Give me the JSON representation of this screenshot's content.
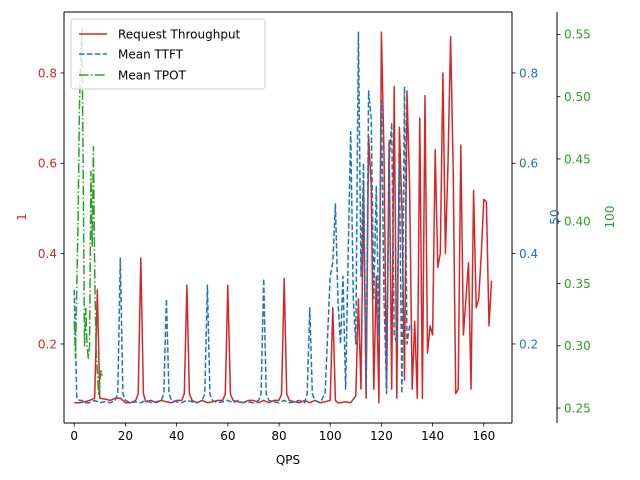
{
  "chart_data": {
    "type": "line",
    "xlabel": "QPS",
    "x_ticks": [
      "0",
      "20",
      "40",
      "60",
      "80",
      "100",
      "120",
      "140",
      "160"
    ],
    "xlim": [
      -4,
      171
    ],
    "axes": [
      {
        "id": "left",
        "label": "1",
        "color": "#d62728",
        "ylim": [
          0.025,
          0.935
        ],
        "ticks": [
          "0.2",
          "0.4",
          "0.6",
          "0.8"
        ]
      },
      {
        "id": "right1",
        "label": "50",
        "color": "#1f77b4",
        "ylim": [
          0.025,
          0.935
        ],
        "ticks": [
          "0.2",
          "0.4",
          "0.6",
          "0.8"
        ]
      },
      {
        "id": "right2",
        "label": "100",
        "color": "#2ca02c",
        "ylim": [
          0.238,
          0.568
        ],
        "ticks": [
          "0.25",
          "0.30",
          "0.35",
          "0.40",
          "0.45",
          "0.50",
          "0.55"
        ]
      }
    ],
    "legend": {
      "position": "upper-left",
      "entries": [
        "Request Throughput",
        "Mean TTFT",
        "Mean TPOT"
      ]
    },
    "series": [
      {
        "name": "Request Throughput",
        "axis": "left",
        "color": "#d62728",
        "style": "solid",
        "x": [
          0,
          2,
          4,
          6,
          8,
          9,
          10,
          12,
          14,
          16,
          18,
          20,
          22,
          24,
          25,
          26,
          27,
          28,
          30,
          32,
          34,
          36,
          38,
          40,
          42,
          43,
          44,
          45,
          46,
          48,
          50,
          52,
          54,
          56,
          58,
          59,
          60,
          61,
          62,
          64,
          66,
          68,
          70,
          72,
          74,
          76,
          78,
          80,
          81,
          82,
          83,
          84,
          86,
          88,
          90,
          92,
          94,
          96,
          98,
          100,
          101,
          102,
          103,
          104,
          106,
          108,
          110,
          111,
          112,
          113,
          114,
          115,
          116,
          117,
          118,
          119,
          120,
          121,
          122,
          123,
          124,
          125,
          126,
          127,
          128,
          129,
          130,
          131,
          132,
          133,
          134,
          135,
          136,
          137,
          138,
          139,
          140,
          141,
          142,
          143,
          144,
          145,
          146,
          147,
          148,
          149,
          150,
          151,
          152,
          153,
          154,
          155,
          156,
          157,
          158,
          159,
          160,
          161,
          162,
          163
        ],
        "y": [
          0.07,
          0.07,
          0.072,
          0.075,
          0.08,
          0.32,
          0.08,
          0.078,
          0.075,
          0.08,
          0.08,
          0.07,
          0.07,
          0.075,
          0.09,
          0.39,
          0.09,
          0.072,
          0.075,
          0.07,
          0.075,
          0.072,
          0.07,
          0.075,
          0.075,
          0.09,
          0.33,
          0.09,
          0.075,
          0.07,
          0.075,
          0.07,
          0.072,
          0.075,
          0.075,
          0.09,
          0.33,
          0.09,
          0.075,
          0.072,
          0.07,
          0.075,
          0.075,
          0.07,
          0.075,
          0.07,
          0.075,
          0.075,
          0.09,
          0.345,
          0.09,
          0.075,
          0.072,
          0.07,
          0.075,
          0.07,
          0.075,
          0.07,
          0.072,
          0.075,
          0.28,
          0.075,
          0.07,
          0.07,
          0.072,
          0.07,
          0.085,
          0.3,
          0.1,
          0.55,
          0.08,
          0.66,
          0.55,
          0.1,
          0.35,
          0.07,
          0.89,
          0.62,
          0.1,
          0.65,
          0.1,
          0.77,
          0.08,
          0.68,
          0.5,
          0.12,
          0.76,
          0.55,
          0.1,
          0.25,
          0.08,
          0.7,
          0.08,
          0.75,
          0.18,
          0.24,
          0.22,
          0.63,
          0.37,
          0.4,
          0.8,
          0.4,
          0.6,
          0.88,
          0.6,
          0.09,
          0.1,
          0.64,
          0.22,
          0.3,
          0.38,
          0.1,
          0.54,
          0.28,
          0.3,
          0.4,
          0.52,
          0.515,
          0.24,
          0.34
        ]
      },
      {
        "name": "Mean TTFT",
        "axis": "right1",
        "color": "#1f77b4",
        "style": "dashed",
        "x": [
          0,
          1,
          2,
          3,
          4,
          6,
          8,
          10,
          12,
          14,
          16,
          17,
          18,
          19,
          20,
          22,
          24,
          26,
          28,
          30,
          32,
          34,
          35,
          36,
          37,
          38,
          40,
          42,
          44,
          46,
          48,
          50,
          51,
          52,
          53,
          54,
          56,
          58,
          60,
          62,
          64,
          66,
          68,
          70,
          72,
          73,
          74,
          75,
          76,
          78,
          80,
          82,
          84,
          86,
          88,
          90,
          91,
          92,
          93,
          94,
          96,
          98,
          100,
          101,
          102,
          103,
          104,
          105,
          106,
          107,
          108,
          109,
          110,
          111,
          112,
          113,
          114,
          115,
          116,
          117,
          118,
          119,
          120,
          121,
          122,
          123,
          124,
          125,
          126,
          127,
          128,
          129,
          130,
          131,
          132
        ],
        "y": [
          0.32,
          0.08,
          0.075,
          0.075,
          0.07,
          0.07,
          0.075,
          0.07,
          0.072,
          0.07,
          0.075,
          0.09,
          0.39,
          0.09,
          0.075,
          0.07,
          0.072,
          0.07,
          0.075,
          0.07,
          0.072,
          0.075,
          0.09,
          0.3,
          0.09,
          0.075,
          0.072,
          0.07,
          0.075,
          0.072,
          0.07,
          0.075,
          0.09,
          0.33,
          0.09,
          0.075,
          0.07,
          0.072,
          0.075,
          0.07,
          0.075,
          0.07,
          0.072,
          0.07,
          0.075,
          0.09,
          0.345,
          0.09,
          0.075,
          0.072,
          0.07,
          0.075,
          0.07,
          0.072,
          0.075,
          0.07,
          0.09,
          0.28,
          0.09,
          0.075,
          0.07,
          0.09,
          0.35,
          0.38,
          0.51,
          0.3,
          0.2,
          0.35,
          0.1,
          0.4,
          0.67,
          0.3,
          0.2,
          0.89,
          0.35,
          0.6,
          0.1,
          0.76,
          0.7,
          0.3,
          0.55,
          0.22,
          0.74,
          0.3,
          0.09,
          0.6,
          0.69,
          0.22,
          0.2,
          0.6,
          0.09,
          0.77,
          0.2,
          0.24,
          0.23
        ]
      },
      {
        "name": "Mean TPOT",
        "axis": "right2",
        "color": "#2ca02c",
        "style": "dashdot",
        "x": [
          0,
          0.5,
          1,
          1.5,
          2,
          2.5,
          3,
          3.5,
          4,
          4.5,
          5,
          5.5,
          6,
          6.5,
          7,
          7.5,
          8,
          8.5,
          9,
          9.5,
          10,
          10.5,
          11
        ],
        "y": [
          0.32,
          0.29,
          0.35,
          0.4,
          0.49,
          0.53,
          0.555,
          0.44,
          0.3,
          0.33,
          0.3,
          0.29,
          0.3,
          0.44,
          0.38,
          0.46,
          0.36,
          0.3,
          0.28,
          0.26,
          0.27,
          0.28,
          0.275
        ]
      }
    ]
  }
}
